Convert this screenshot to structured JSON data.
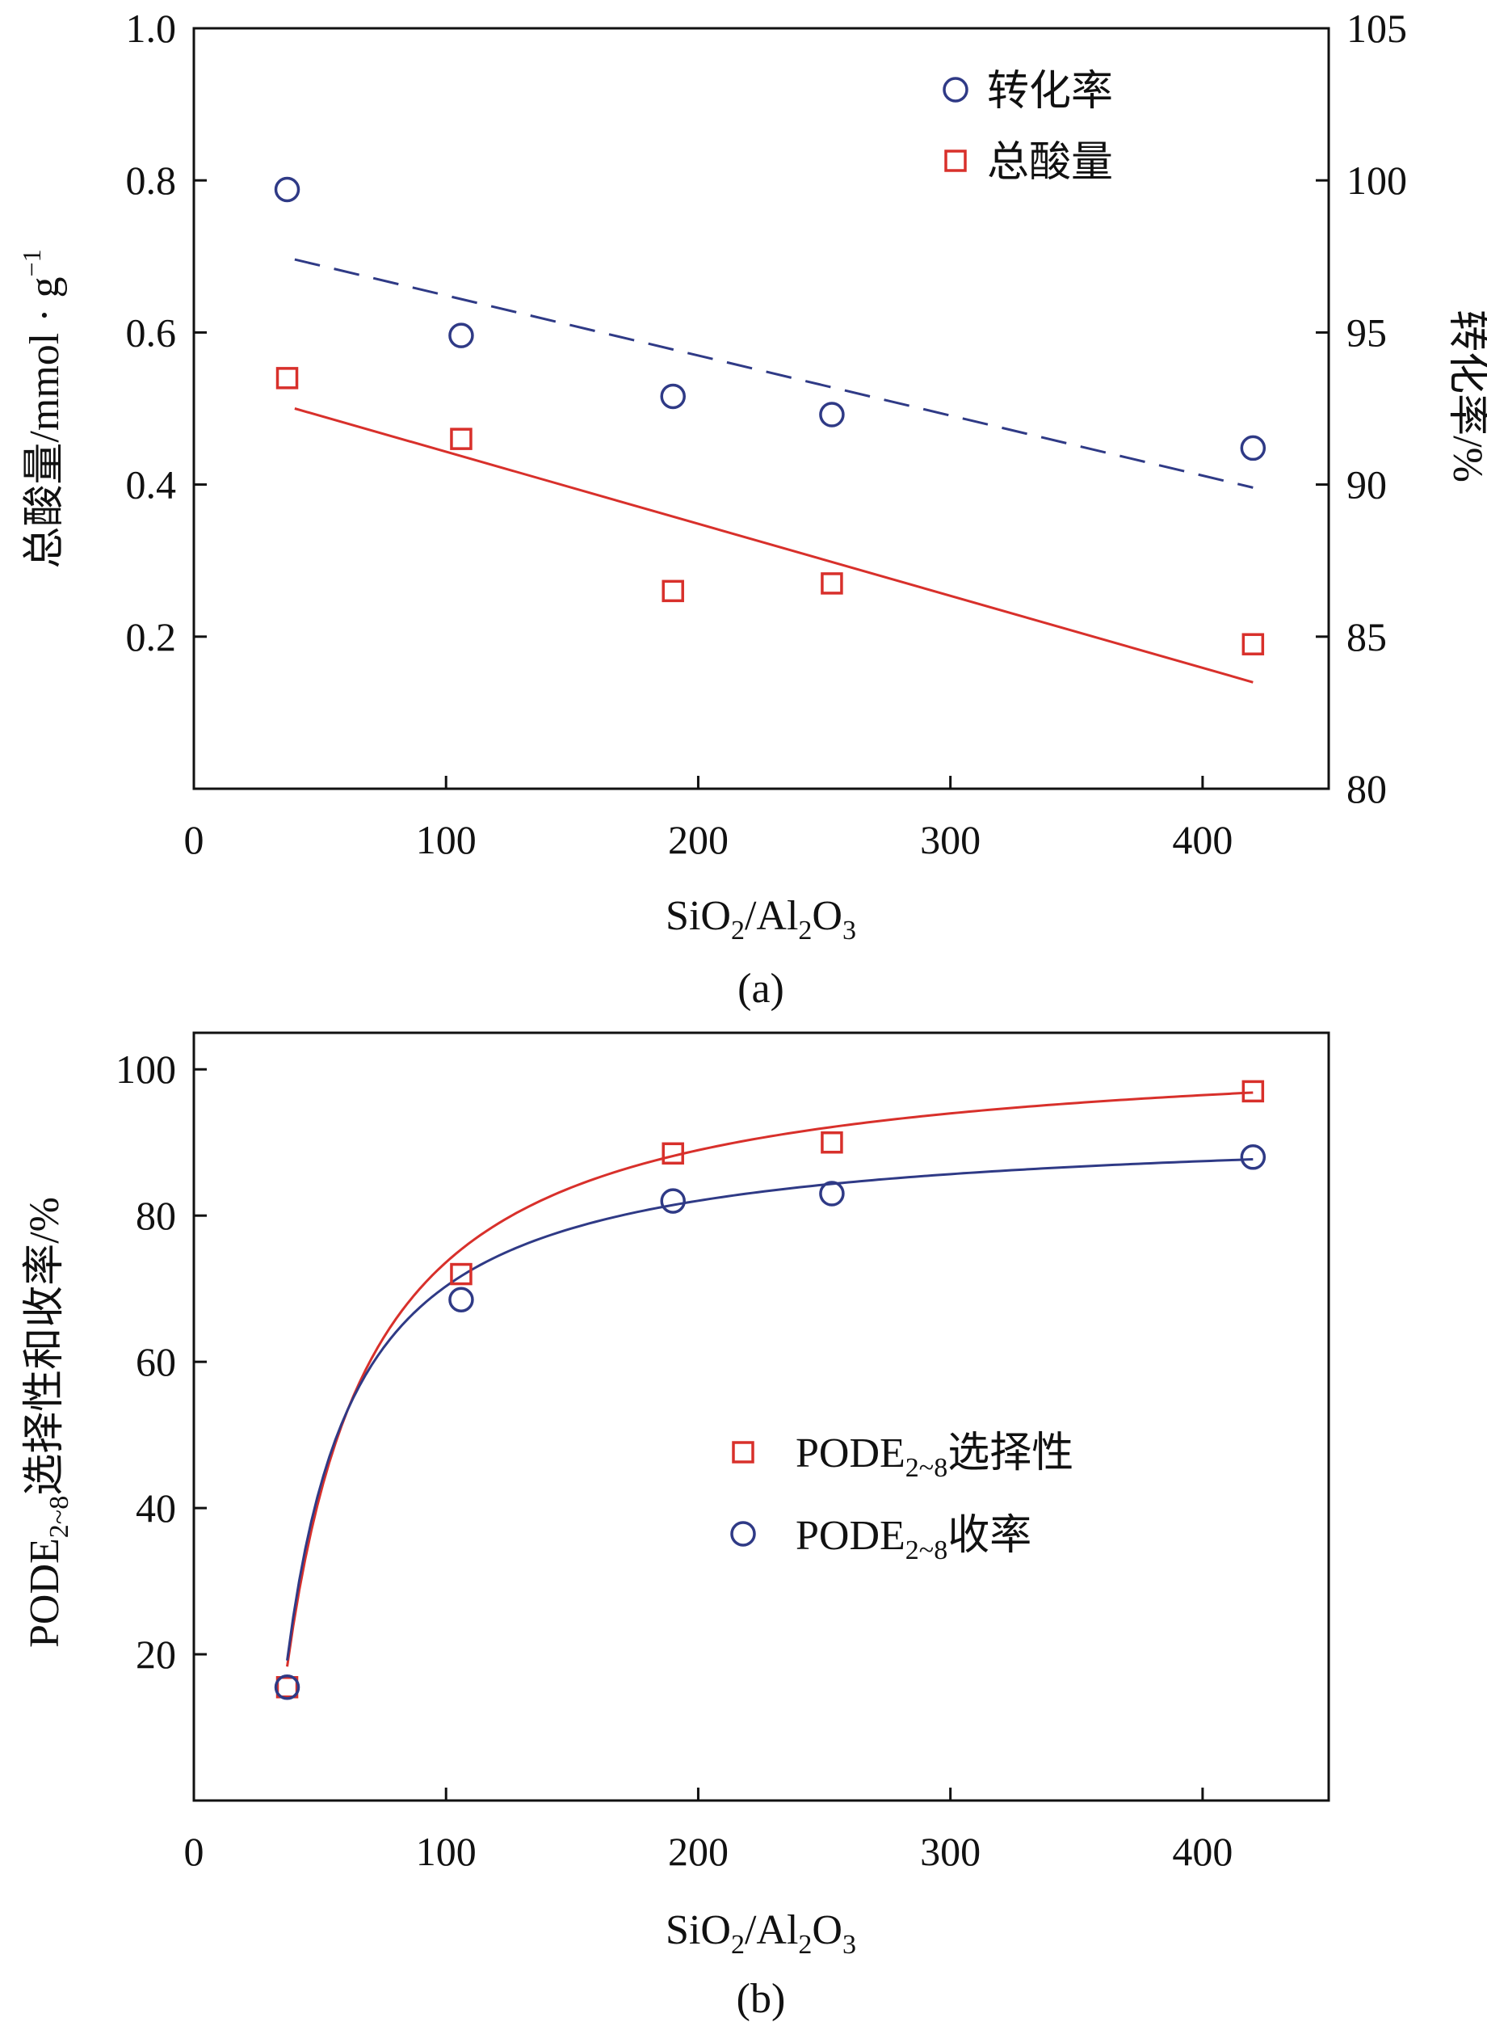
{
  "figure": {
    "panel_a_label": "(a)",
    "panel_b_label": "(b)"
  },
  "chart_data": [
    {
      "type": "scatter",
      "panel": "(a)",
      "x_label": "SiO2/Al2O3",
      "x_label_parts": {
        "a": "SiO",
        "b": "2",
        "c": "/Al",
        "d": "2",
        "e": "O",
        "f": "3"
      },
      "y_left_label": "总酸量/mmol · g",
      "y_left_label_sup": "−1",
      "y_right_label": "转化率/%",
      "xlim": [
        0,
        450
      ],
      "ylim_left": [
        0,
        1.0
      ],
      "ylim_right": [
        80,
        105
      ],
      "x_ticks": [
        0,
        100,
        200,
        300,
        400
      ],
      "x_tick_labels": [
        "0",
        "100",
        "200",
        "300",
        "400"
      ],
      "y_left_ticks": [
        0.2,
        0.4,
        0.6,
        0.8,
        1.0
      ],
      "y_left_tick_labels": [
        "0.2",
        "0.4",
        "0.6",
        "0.8",
        "1.0"
      ],
      "y_right_ticks": [
        80,
        85,
        90,
        95,
        100,
        105
      ],
      "y_right_tick_labels": [
        "80",
        "85",
        "90",
        "95",
        "100",
        "105"
      ],
      "legend_position": "top-right",
      "series": [
        {
          "name": "转化率",
          "axis": "right",
          "marker": "circle",
          "color": "#2f3a86",
          "x": [
            37,
            106,
            190,
            253,
            420
          ],
          "y": [
            99.7,
            94.9,
            92.9,
            92.3,
            91.2
          ],
          "fit": {
            "style": "dashed",
            "x": [
              40,
              420
            ],
            "y": [
              97.4,
              89.9
            ]
          }
        },
        {
          "name": "总酸量",
          "axis": "left",
          "marker": "square",
          "color": "#d8302b",
          "x": [
            37,
            106,
            190,
            253,
            420
          ],
          "y": [
            0.54,
            0.46,
            0.26,
            0.27,
            0.19
          ],
          "fit": {
            "style": "solid",
            "x": [
              40,
              420
            ],
            "y": [
              0.5,
              0.14
            ]
          }
        }
      ]
    },
    {
      "type": "scatter",
      "panel": "(b)",
      "x_label": "SiO2/Al2O3",
      "x_label_parts": {
        "a": "SiO",
        "b": "2",
        "c": "/Al",
        "d": "2",
        "e": "O",
        "f": "3"
      },
      "y_label": "PODE2~8选择性和收率/%",
      "y_label_parts": {
        "a": "PODE",
        "b": "2~8",
        "c": "选择性和收率/%"
      },
      "xlim": [
        0,
        450
      ],
      "ylim": [
        0,
        105
      ],
      "x_ticks": [
        0,
        100,
        200,
        300,
        400
      ],
      "x_tick_labels": [
        "0",
        "100",
        "200",
        "300",
        "400"
      ],
      "y_ticks": [
        20,
        40,
        60,
        80,
        100
      ],
      "y_tick_labels": [
        "20",
        "40",
        "60",
        "80",
        "100"
      ],
      "legend_position": "center-right",
      "series": [
        {
          "name": "PODE2~8选择性",
          "label_parts": {
            "a": "PODE",
            "b": "2~8",
            "c": "选择性"
          },
          "marker": "square",
          "color": "#d8302b",
          "x": [
            37,
            106,
            190,
            253,
            420
          ],
          "y": [
            15.5,
            72,
            88.5,
            90,
            97
          ],
          "fit": {
            "style": "solid",
            "model": "saturation",
            "ymax": 103.9,
            "k": 33.4,
            "x0": 35.9,
            "x_range": [
              37,
              420
            ]
          }
        },
        {
          "name": "PODE2~8收率",
          "label_parts": {
            "a": "PODE",
            "b": "2~8",
            "c": "收率"
          },
          "marker": "circle",
          "color": "#2f3a86",
          "x": [
            37,
            106,
            190,
            253,
            420
          ],
          "y": [
            15.5,
            68.5,
            82,
            83,
            88
          ],
          "fit": {
            "style": "solid",
            "model": "saturation",
            "ymax": 92.6,
            "k": 26.1,
            "x0": 35.7,
            "x_range": [
              37,
              420
            ]
          }
        }
      ]
    }
  ]
}
